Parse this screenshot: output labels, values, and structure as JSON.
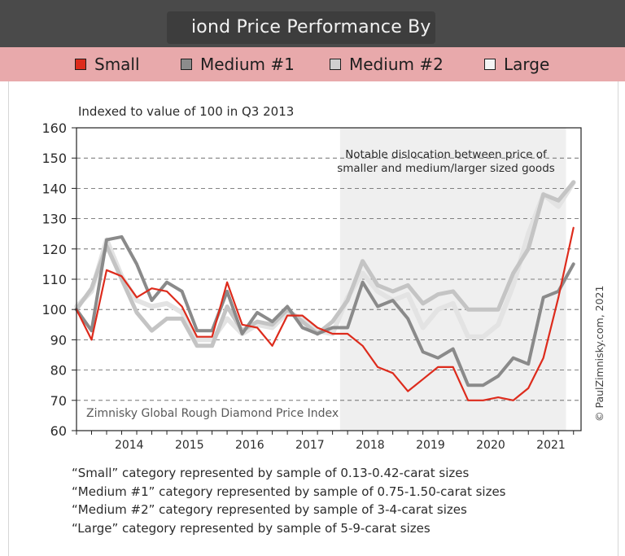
{
  "header": {
    "title": "iond Price Performance By Si"
  },
  "legend": [
    {
      "label": "Small",
      "color": "#dd2b1c"
    },
    {
      "label": "Medium #1",
      "color": "#8c8c8c"
    },
    {
      "label": "Medium #2",
      "color": "#d0d0d0"
    },
    {
      "label": "Large",
      "color": "#f4f4f4"
    }
  ],
  "chart_data": {
    "type": "line",
    "subtitle": "Indexed to value of 100 in Q3 2013",
    "annotation": "Notable dislocation between price of smaller and medium/larger sized goods",
    "annotation_lines": [
      "Notable dislocation between price of",
      "smaller and medium/larger sized goods"
    ],
    "watermark": "Zimnisky Global Rough Diamond Price Index",
    "credit": "© PaulZimnisky.com, 2021",
    "ylim": [
      60,
      160
    ],
    "yticks": [
      60,
      70,
      80,
      90,
      100,
      110,
      120,
      130,
      140,
      150,
      160
    ],
    "xlim": [
      2013.125,
      2021.5
    ],
    "xtick_values": [
      2014,
      2015,
      2016,
      2017,
      2018,
      2019,
      2020,
      2021
    ],
    "xtick_labels": [
      "2014",
      "2015",
      "2016",
      "2017",
      "2018",
      "2019",
      "2020",
      "2021"
    ],
    "shaded_region": [
      2017.5,
      2021.25
    ],
    "x_start": 2013.125,
    "x_step": 0.25,
    "series": [
      {
        "name": "Large",
        "color": "#e3e3e3",
        "width": 6,
        "values": [
          101,
          106,
          123,
          111,
          103,
          101,
          102,
          99,
          90,
          90,
          97,
          92,
          95,
          94,
          99,
          97,
          93,
          92,
          104,
          112,
          106,
          103,
          105,
          94,
          100,
          102,
          91,
          91,
          95,
          108,
          125,
          138,
          134,
          142
        ]
      },
      {
        "name": "Medium #2",
        "color": "#c4c4c4",
        "width": 5,
        "values": [
          100,
          107,
          121,
          110,
          99,
          93,
          97,
          97,
          88,
          88,
          101,
          93,
          96,
          95,
          100,
          96,
          92,
          96,
          103,
          116,
          108,
          106,
          108,
          102,
          105,
          106,
          100,
          100,
          100,
          112,
          120,
          138,
          136,
          142
        ]
      },
      {
        "name": "Medium #1",
        "color": "#8a8a8a",
        "width": 4,
        "values": [
          100,
          93,
          123,
          124,
          115,
          103,
          109,
          106,
          93,
          93,
          106,
          92,
          99,
          96,
          101,
          94,
          92,
          94,
          94,
          109,
          101,
          103,
          97,
          86,
          84,
          87,
          75,
          75,
          78,
          84,
          82,
          104,
          106,
          115
        ]
      },
      {
        "name": "Small",
        "color": "#dd2b1c",
        "width": 2.2,
        "values": [
          100,
          90,
          113,
          111,
          104,
          107,
          106,
          101,
          91,
          91,
          109,
          95,
          94,
          88,
          98,
          98,
          94,
          92,
          92,
          88,
          81,
          79,
          73,
          77,
          81,
          81,
          70,
          70,
          71,
          70,
          74,
          84,
          104,
          127
        ]
      }
    ]
  },
  "notes": [
    "“Small” category represented by sample of 0.13-0.42-carat sizes",
    "“Medium #1” category represented by sample of 0.75-1.50-carat sizes",
    "“Medium #2” category represented by sample of 3-4-carat sizes",
    "“Large” category represented by sample of 5-9-carat sizes"
  ]
}
